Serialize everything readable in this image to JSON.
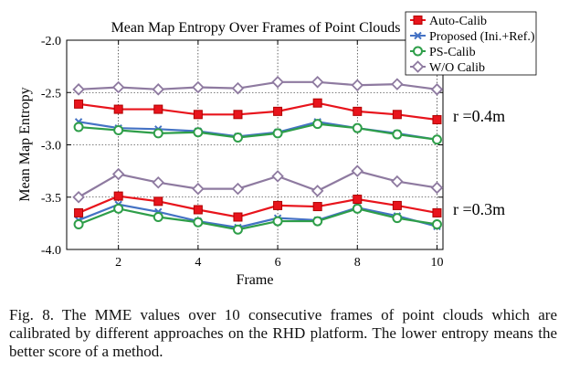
{
  "chart_data": {
    "type": "line",
    "title": "Mean Map Entropy Over Frames of Point Clouds",
    "xlabel": "Frame",
    "ylabel": "Mean Map Entropy",
    "x": [
      1,
      2,
      3,
      4,
      5,
      6,
      7,
      8,
      9,
      10
    ],
    "xlim": [
      0.7,
      10.15
    ],
    "ylim": [
      -4.0,
      -2.0
    ],
    "xticks": [
      2,
      4,
      6,
      8,
      10
    ],
    "yticks": [
      -2.0,
      -2.5,
      -3.0,
      -3.5,
      -4.0
    ],
    "ytick_labels": [
      "-2.0",
      "-2.5",
      "-3.0",
      "-3.5",
      "-4.0"
    ],
    "grid": true,
    "legend_position": "top-right",
    "legend": [
      {
        "name": "Auto-Calib",
        "color": "#e8141c",
        "marker": "square"
      },
      {
        "name": "Proposed (Ini.+Ref.)",
        "color": "#4472c4",
        "marker": "x"
      },
      {
        "name": "PS-Calib",
        "color": "#2e9e49",
        "marker": "circle"
      },
      {
        "name": "W/O Calib",
        "color": "#8e7aa0",
        "marker": "diamond"
      }
    ],
    "series": [
      {
        "name": "W/O Calib",
        "group": "r=0.4m",
        "color": "#8e7aa0",
        "marker": "diamond",
        "values": [
          -2.47,
          -2.45,
          -2.47,
          -2.45,
          -2.46,
          -2.4,
          -2.4,
          -2.43,
          -2.42,
          -2.47
        ]
      },
      {
        "name": "Proposed (Ini.+Ref.)",
        "group": "r=0.4m",
        "color": "#4472c4",
        "marker": "x",
        "values": [
          -2.78,
          -2.84,
          -2.85,
          -2.87,
          -2.92,
          -2.88,
          -2.78,
          -2.84,
          -2.89,
          -2.95
        ]
      },
      {
        "name": "PS-Calib",
        "group": "r=0.4m",
        "color": "#2e9e49",
        "marker": "circle",
        "values": [
          -2.83,
          -2.86,
          -2.89,
          -2.88,
          -2.93,
          -2.89,
          -2.8,
          -2.84,
          -2.9,
          -2.95
        ]
      },
      {
        "name": "Auto-Calib",
        "group": "r=0.4m",
        "color": "#e8141c",
        "marker": "square",
        "values": [
          -2.61,
          -2.66,
          -2.66,
          -2.71,
          -2.71,
          -2.68,
          -2.6,
          -2.68,
          -2.71,
          -2.76
        ]
      },
      {
        "name": "W/O Calib",
        "group": "r=0.3m",
        "color": "#8e7aa0",
        "marker": "diamond",
        "values": [
          -3.5,
          -3.28,
          -3.36,
          -3.42,
          -3.42,
          -3.3,
          -3.44,
          -3.25,
          -3.35,
          -3.41
        ]
      },
      {
        "name": "Proposed (Ini.+Ref.)",
        "group": "r=0.3m",
        "color": "#4472c4",
        "marker": "x",
        "values": [
          -3.72,
          -3.57,
          -3.64,
          -3.73,
          -3.79,
          -3.7,
          -3.72,
          -3.6,
          -3.68,
          -3.78
        ]
      },
      {
        "name": "PS-Calib",
        "group": "r=0.3m",
        "color": "#2e9e49",
        "marker": "circle",
        "values": [
          -3.76,
          -3.61,
          -3.69,
          -3.74,
          -3.81,
          -3.73,
          -3.73,
          -3.61,
          -3.7,
          -3.76
        ]
      },
      {
        "name": "Auto-Calib",
        "group": "r=0.3m",
        "color": "#e8141c",
        "marker": "square",
        "values": [
          -3.65,
          -3.49,
          -3.54,
          -3.62,
          -3.69,
          -3.58,
          -3.59,
          -3.52,
          -3.58,
          -3.65
        ]
      }
    ],
    "annotations": [
      {
        "text": "r =0.4m",
        "y": -2.71
      },
      {
        "text": "r =0.3m",
        "y": -3.5
      }
    ]
  },
  "caption": "Fig. 8.   The MME values over 10 consecutive frames of point clouds which are calibrated by different approaches on the RHD platform. The lower entropy means the better score of a method."
}
